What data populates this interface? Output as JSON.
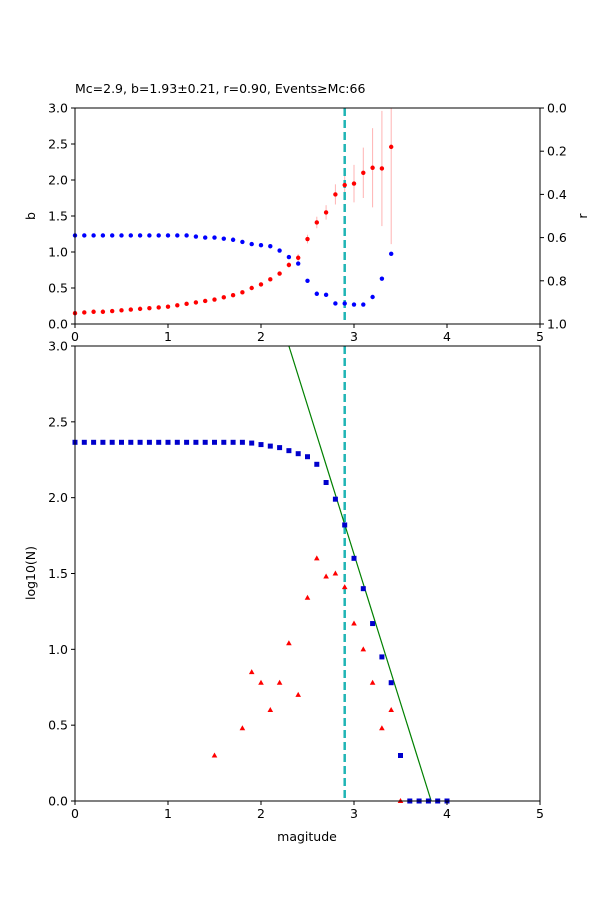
{
  "colors": {
    "b_series": "#ff0000",
    "r_series": "#0000ff",
    "error_bar": "#ffb3b3",
    "mc_line": "#1fb5b5",
    "cumulative": "#0000cc",
    "noncumulative": "#ff0000",
    "fit_line": "#008000"
  },
  "chart_data": [
    {
      "type": "scatter",
      "title": "Mc=2.9, b=1.93±0.21, r=0.90, Events≥Mc:66",
      "xlabel": "",
      "ylabel": "b",
      "ylabel_right": "r",
      "xlim": [
        0,
        5
      ],
      "ylim": [
        0,
        3
      ],
      "ylim_right": [
        1,
        0
      ],
      "right_axis_inverted": true,
      "grid": false,
      "xticks": [
        "0",
        "1",
        "2",
        "3",
        "4",
        "5"
      ],
      "yticks": [
        "0.0",
        "0.5",
        "1.0",
        "1.5",
        "2.0",
        "2.5",
        "3.0"
      ],
      "yticks_right": [
        "0.0",
        "0.2",
        "0.4",
        "0.6",
        "0.8",
        "1.0"
      ],
      "mc_marker": 2.9,
      "series": [
        {
          "axis": "left",
          "marker": "circle",
          "x": [
            0.0,
            0.1,
            0.2,
            0.3,
            0.4,
            0.5,
            0.6,
            0.7,
            0.8,
            0.9,
            1.0,
            1.1,
            1.2,
            1.3,
            1.4,
            1.5,
            1.6,
            1.7,
            1.8,
            1.9,
            2.0,
            2.1,
            2.2,
            2.3,
            2.4,
            2.5,
            2.6,
            2.7,
            2.8,
            2.9,
            3.0,
            3.1,
            3.2,
            3.3,
            3.4
          ],
          "y": [
            0.15,
            0.16,
            0.17,
            0.17,
            0.18,
            0.19,
            0.2,
            0.21,
            0.22,
            0.23,
            0.24,
            0.26,
            0.28,
            0.3,
            0.32,
            0.34,
            0.37,
            0.4,
            0.44,
            0.5,
            0.55,
            0.62,
            0.7,
            0.82,
            0.92,
            1.18,
            1.41,
            1.55,
            1.8,
            1.93,
            1.95,
            2.1,
            2.17,
            2.16,
            2.46
          ],
          "err": [
            0.01,
            0.01,
            0.01,
            0.01,
            0.01,
            0.01,
            0.01,
            0.01,
            0.01,
            0.01,
            0.01,
            0.01,
            0.01,
            0.01,
            0.01,
            0.01,
            0.01,
            0.01,
            0.01,
            0.01,
            0.02,
            0.02,
            0.03,
            0.04,
            0.05,
            0.06,
            0.08,
            0.1,
            0.14,
            0.21,
            0.26,
            0.35,
            0.55,
            0.8,
            1.35
          ]
        },
        {
          "axis": "right",
          "marker": "circle",
          "x": [
            0.0,
            0.1,
            0.2,
            0.3,
            0.4,
            0.5,
            0.6,
            0.7,
            0.8,
            0.9,
            1.0,
            1.1,
            1.2,
            1.3,
            1.4,
            1.5,
            1.6,
            1.7,
            1.8,
            1.9,
            2.0,
            2.1,
            2.2,
            2.3,
            2.4,
            2.5,
            2.6,
            2.7,
            2.8,
            2.9,
            3.0,
            3.1,
            3.2,
            3.3,
            3.4
          ],
          "y": [
            0.59,
            0.59,
            0.59,
            0.59,
            0.59,
            0.59,
            0.59,
            0.59,
            0.59,
            0.59,
            0.59,
            0.59,
            0.59,
            0.595,
            0.6,
            0.6,
            0.605,
            0.61,
            0.62,
            0.63,
            0.635,
            0.64,
            0.66,
            0.69,
            0.72,
            0.8,
            0.86,
            0.865,
            0.905,
            0.905,
            0.91,
            0.91,
            0.875,
            0.79,
            0.675
          ]
        }
      ]
    },
    {
      "type": "scatter",
      "title": "",
      "xlabel": "magitude",
      "ylabel": "log10(N)",
      "xlim": [
        0,
        5
      ],
      "ylim": [
        0,
        3
      ],
      "grid": false,
      "xticks": [
        "0",
        "1",
        "2",
        "3",
        "4",
        "5"
      ],
      "yticks": [
        "0.0",
        "0.5",
        "1.0",
        "1.5",
        "2.0",
        "2.5",
        "3.0"
      ],
      "mc_marker": 2.9,
      "series": [
        {
          "marker": "square",
          "x": [
            0.0,
            0.1,
            0.2,
            0.3,
            0.4,
            0.5,
            0.6,
            0.7,
            0.8,
            0.9,
            1.0,
            1.1,
            1.2,
            1.3,
            1.4,
            1.5,
            1.6,
            1.7,
            1.8,
            1.9,
            2.0,
            2.1,
            2.2,
            2.3,
            2.4,
            2.5,
            2.6,
            2.7,
            2.8,
            2.9,
            3.0,
            3.1,
            3.2,
            3.3,
            3.4,
            3.5,
            3.6,
            3.7,
            3.8,
            3.9,
            4.0
          ],
          "y": [
            2.365,
            2.365,
            2.365,
            2.365,
            2.365,
            2.365,
            2.365,
            2.365,
            2.365,
            2.365,
            2.365,
            2.365,
            2.365,
            2.365,
            2.365,
            2.365,
            2.365,
            2.365,
            2.365,
            2.36,
            2.35,
            2.34,
            2.33,
            2.31,
            2.29,
            2.27,
            2.22,
            2.1,
            1.99,
            1.82,
            1.6,
            1.4,
            1.17,
            0.95,
            0.78,
            0.3,
            0.0,
            0.0,
            0.0,
            0.0,
            0.0
          ]
        },
        {
          "marker": "triangle",
          "x": [
            1.5,
            1.8,
            1.9,
            2.0,
            2.1,
            2.2,
            2.3,
            2.4,
            2.5,
            2.6,
            2.7,
            2.8,
            2.9,
            3.0,
            3.1,
            3.2,
            3.3,
            3.4,
            3.5
          ],
          "y": [
            0.3,
            0.48,
            0.85,
            0.78,
            0.6,
            0.78,
            1.04,
            0.7,
            1.34,
            1.6,
            1.48,
            1.5,
            1.41,
            1.17,
            1.0,
            0.78,
            0.48,
            0.6,
            0.0
          ]
        }
      ],
      "fit_line": {
        "x": [
          2.3,
          3.83
        ],
        "y": [
          3.0,
          0.0
        ]
      }
    }
  ]
}
